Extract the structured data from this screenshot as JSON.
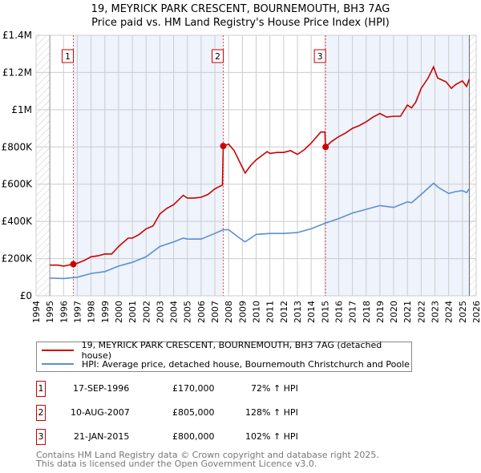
{
  "chart_data": {
    "type": "line",
    "title": "19, MEYRICK PARK CRESCENT, BOURNEMOUTH, BH3 7AG",
    "subtitle": "Price paid vs. HM Land Registry's House Price Index (HPI)",
    "xlim": [
      1994,
      2026
    ],
    "ylim": [
      0,
      1400000
    ],
    "x_ticks": [
      "1994",
      "1995",
      "1996",
      "1997",
      "1998",
      "1999",
      "2000",
      "2001",
      "2002",
      "2003",
      "2004",
      "2005",
      "2006",
      "2007",
      "2008",
      "2009",
      "2010",
      "2011",
      "2012",
      "2013",
      "2014",
      "2015",
      "2016",
      "2017",
      "2018",
      "2019",
      "2020",
      "2021",
      "2022",
      "2023",
      "2024",
      "2025",
      "2026"
    ],
    "y_ticks": [
      {
        "v": 0,
        "label": "£0"
      },
      {
        "v": 200000,
        "label": "£200K"
      },
      {
        "v": 400000,
        "label": "£400K"
      },
      {
        "v": 600000,
        "label": "£600K"
      },
      {
        "v": 800000,
        "label": "£800K"
      },
      {
        "v": 1000000,
        "label": "£1M"
      },
      {
        "v": 1200000,
        "label": "£1.2M"
      },
      {
        "v": 1400000,
        "label": "£1.4M"
      }
    ],
    "grid": true,
    "series": [
      {
        "name": "19, MEYRICK PARK CRESCENT, BOURNEMOUTH, BH3 7AG (detached house)",
        "color": "#cc0000",
        "x": [
          1995,
          1995.6,
          1996,
          1996.71,
          1997,
          1997.5,
          1998,
          1998.5,
          1999,
          1999.5,
          2000,
          2000.7,
          2001,
          2001.5,
          2002,
          2002.5,
          2003,
          2003.5,
          2004,
          2004.7,
          2005,
          2005.5,
          2006,
          2006.5,
          2007,
          2007.55,
          2007.61,
          2008,
          2008.4,
          2008.8,
          2009.2,
          2009.6,
          2010,
          2010.8,
          2011,
          2011.5,
          2012,
          2012.5,
          2013,
          2013.5,
          2014,
          2014.7,
          2015.0,
          2015.05,
          2015.5,
          2016,
          2016.5,
          2017,
          2017.5,
          2018,
          2018.5,
          2019,
          2019.5,
          2020,
          2020.5,
          2021,
          2021.3,
          2021.6,
          2022,
          2022.5,
          2022.9,
          2023.2,
          2023.8,
          2024.2,
          2024.5,
          2025,
          2025.3,
          2025.5
        ],
        "y": [
          165000,
          165000,
          160000,
          170000,
          175000,
          190000,
          210000,
          215000,
          225000,
          225000,
          265000,
          310000,
          310000,
          330000,
          360000,
          375000,
          440000,
          470000,
          490000,
          540000,
          525000,
          525000,
          530000,
          545000,
          575000,
          595000,
          805000,
          815000,
          780000,
          720000,
          660000,
          700000,
          730000,
          775000,
          765000,
          770000,
          770000,
          780000,
          760000,
          785000,
          820000,
          880000,
          880000,
          800000,
          830000,
          855000,
          875000,
          900000,
          915000,
          935000,
          960000,
          980000,
          960000,
          965000,
          965000,
          1025000,
          1010000,
          1040000,
          1115000,
          1170000,
          1230000,
          1170000,
          1150000,
          1115000,
          1135000,
          1155000,
          1125000,
          1165000
        ]
      },
      {
        "name": "HPI: Average price, detached house, Bournemouth Christchurch and Poole",
        "color": "#5b8fd4",
        "x": [
          1995,
          1996,
          1996.71,
          1997,
          1998,
          1999,
          2000,
          2001,
          2002,
          2003,
          2004,
          2004.7,
          2005,
          2006,
          2007,
          2007.6,
          2008,
          2008.8,
          2009.2,
          2010,
          2011,
          2012,
          2013,
          2014,
          2015,
          2016,
          2017,
          2018,
          2019,
          2020,
          2021,
          2021.3,
          2022,
          2022.9,
          2023.3,
          2024,
          2024.5,
          2025,
          2025.3,
          2025.5
        ],
        "y": [
          95000,
          93000,
          98000,
          100000,
          120000,
          130000,
          160000,
          180000,
          210000,
          265000,
          290000,
          310000,
          305000,
          305000,
          335000,
          355000,
          355000,
          310000,
          290000,
          330000,
          335000,
          335000,
          340000,
          360000,
          390000,
          415000,
          445000,
          465000,
          485000,
          475000,
          505000,
          500000,
          545000,
          605000,
          580000,
          550000,
          560000,
          565000,
          555000,
          575000
        ]
      }
    ],
    "sales": [
      {
        "n": "1",
        "x": 1996.71,
        "date": "17-SEP-1996",
        "price": 170000,
        "price_label": "£170,000",
        "hpi": "72% ↑ HPI"
      },
      {
        "n": "2",
        "x": 2007.61,
        "date": "10-AUG-2007",
        "price": 805000,
        "price_label": "£805,000",
        "hpi": "128% ↑ HPI"
      },
      {
        "n": "3",
        "x": 2015.05,
        "date": "21-JAN-2015",
        "price": 800000,
        "price_label": "£800,000",
        "hpi": "102% ↑ HPI"
      }
    ],
    "shaded_ranges": [
      [
        1996.71,
        2007.61
      ],
      [
        2015.05,
        2025.5
      ]
    ],
    "hatched_ranges": [
      [
        1994,
        1995
      ],
      [
        2025.5,
        2026
      ]
    ]
  },
  "footer": {
    "line1": "Contains HM Land Registry data © Crown copyright and database right 2025.",
    "line2": "This data is licensed under the Open Government Licence v3.0."
  }
}
